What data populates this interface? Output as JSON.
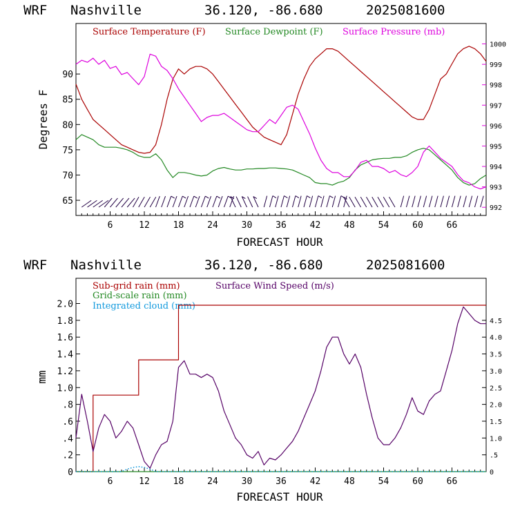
{
  "chart_data": [
    {
      "type": "line",
      "header": {
        "model": "WRF",
        "location": "Nashville",
        "coords": "36.120, -86.680",
        "run": "2025081600"
      },
      "xlabel": "FORECAST HOUR",
      "ylabel": "Degrees F",
      "xlim": [
        0,
        72
      ],
      "ylim": [
        62,
        100
      ],
      "y2lim": [
        991.6,
        1001.0
      ],
      "xticks": [
        "6",
        "12",
        "18",
        "24",
        "30",
        "36",
        "42",
        "48",
        "54",
        "60",
        "66"
      ],
      "yticks": [
        "65",
        "70",
        "75",
        "80",
        "85",
        "90"
      ],
      "y2ticks": [
        "992",
        "993",
        "994",
        "995",
        "996",
        "997",
        "998",
        "999",
        "1000"
      ],
      "series": [
        {
          "name": "Surface Temperature (F)",
          "color": "#aa0000",
          "axis": "left",
          "x": [
            0,
            1,
            2,
            3,
            4,
            5,
            6,
            7,
            8,
            9,
            10,
            11,
            12,
            13,
            14,
            15,
            16,
            17,
            18,
            19,
            20,
            21,
            22,
            23,
            24,
            25,
            26,
            27,
            28,
            29,
            30,
            31,
            32,
            33,
            34,
            35,
            36,
            37,
            38,
            39,
            40,
            41,
            42,
            43,
            44,
            45,
            46,
            47,
            48,
            49,
            50,
            51,
            52,
            53,
            54,
            55,
            56,
            57,
            58,
            59,
            60,
            61,
            62,
            63,
            64,
            65,
            66,
            67,
            68,
            69,
            70,
            71,
            72
          ],
          "y": [
            88,
            85,
            83,
            81,
            80,
            79,
            78,
            77,
            76,
            75.5,
            75,
            74.5,
            74.3,
            74.5,
            76,
            80,
            85,
            89,
            91,
            90,
            91,
            91.5,
            91.5,
            91,
            90,
            88.5,
            87,
            85.5,
            84,
            82.5,
            81,
            79.5,
            78.5,
            77.5,
            77,
            76.5,
            76,
            78,
            82,
            86,
            89,
            91.5,
            93,
            94,
            95,
            95,
            94.5,
            93.5,
            92.5,
            91.5,
            90.5,
            89.5,
            88.5,
            87.5,
            86.5,
            85.5,
            84.5,
            83.5,
            82.5,
            81.5,
            81,
            81,
            83,
            86,
            89,
            90,
            92,
            94,
            95,
            95.5,
            95,
            94,
            92.5
          ]
        },
        {
          "name": "Surface Dewpoint (F)",
          "color": "#228822",
          "axis": "left",
          "x": [
            0,
            1,
            2,
            3,
            4,
            5,
            6,
            7,
            8,
            9,
            10,
            11,
            12,
            13,
            14,
            15,
            16,
            17,
            18,
            19,
            20,
            21,
            22,
            23,
            24,
            25,
            26,
            27,
            28,
            29,
            30,
            31,
            32,
            33,
            34,
            35,
            36,
            37,
            38,
            39,
            40,
            41,
            42,
            43,
            44,
            45,
            46,
            47,
            48,
            49,
            50,
            51,
            52,
            53,
            54,
            55,
            56,
            57,
            58,
            59,
            60,
            61,
            62,
            63,
            64,
            65,
            66,
            67,
            68,
            69,
            70,
            71,
            72
          ],
          "y": [
            77,
            78,
            77.5,
            77,
            76,
            75.5,
            75.5,
            75.5,
            75.3,
            75,
            74.5,
            73.8,
            73.5,
            73.5,
            74.2,
            73,
            71,
            69.5,
            70.5,
            70.5,
            70.3,
            70,
            69.8,
            70,
            70.8,
            71.3,
            71.5,
            71.2,
            71,
            71,
            71.2,
            71.2,
            71.3,
            71.3,
            71.4,
            71.4,
            71.3,
            71.2,
            71,
            70.5,
            70,
            69.5,
            68.5,
            68.3,
            68.3,
            68,
            68.5,
            68.8,
            69.5,
            71,
            72,
            72.5,
            73,
            73.2,
            73.3,
            73.3,
            73.5,
            73.5,
            73.8,
            74.5,
            75,
            75.3,
            75,
            74,
            73,
            72,
            71,
            69.5,
            68.5,
            68,
            68.3,
            69.3,
            70
          ]
        },
        {
          "name": "Surface Pressure (mb)",
          "color": "#dd00dd",
          "axis": "right",
          "x": [
            0,
            1,
            2,
            3,
            4,
            5,
            6,
            7,
            8,
            9,
            10,
            11,
            12,
            13,
            14,
            15,
            16,
            17,
            18,
            19,
            20,
            21,
            22,
            23,
            24,
            25,
            26,
            27,
            28,
            29,
            30,
            31,
            32,
            33,
            34,
            35,
            36,
            37,
            38,
            39,
            40,
            41,
            42,
            43,
            44,
            45,
            46,
            47,
            48,
            49,
            50,
            51,
            52,
            53,
            54,
            55,
            56,
            57,
            58,
            59,
            60,
            61,
            62,
            63,
            64,
            65,
            66,
            67,
            68,
            69,
            70,
            71,
            72
          ],
          "y": [
            999.0,
            999.2,
            999.1,
            999.3,
            999.0,
            999.2,
            998.8,
            998.9,
            998.5,
            998.6,
            998.3,
            998.0,
            998.4,
            999.5,
            999.4,
            998.9,
            998.7,
            998.3,
            997.8,
            997.4,
            997.0,
            996.6,
            996.2,
            996.4,
            996.5,
            996.5,
            996.6,
            996.4,
            996.2,
            996.0,
            995.8,
            995.7,
            995.7,
            996.0,
            996.3,
            996.1,
            996.5,
            996.9,
            997.0,
            996.8,
            996.2,
            995.6,
            994.9,
            994.3,
            993.9,
            993.7,
            993.7,
            993.5,
            993.5,
            993.8,
            994.2,
            994.3,
            994.0,
            994.0,
            993.9,
            993.7,
            993.8,
            993.6,
            993.5,
            993.7,
            994.0,
            994.7,
            995.0,
            994.7,
            994.4,
            994.2,
            994.0,
            993.6,
            993.3,
            993.2,
            993.0,
            992.9,
            993.0
          ]
        }
      ]
    },
    {
      "type": "line",
      "header": {
        "model": "WRF",
        "location": "Nashville",
        "coords": "36.120, -86.680",
        "run": "2025081600"
      },
      "xlabel": "FORECAST HOUR",
      "ylabel": "mm",
      "xlim": [
        0,
        72
      ],
      "ylim": [
        0,
        2.3
      ],
      "y2lim": [
        0,
        5.75
      ],
      "xticks": [
        "6",
        "12",
        "18",
        "24",
        "30",
        "36",
        "42",
        "48",
        "54",
        "60",
        "66"
      ],
      "yticks": [
        "0",
        "0.2",
        "0.4",
        "0.6",
        "0.8",
        "1.0",
        "1.2",
        "1.4",
        "1.6",
        "1.8",
        "2.0"
      ],
      "ytick_labels": [
        "0",
        ".2",
        ".4",
        ".6",
        ".8",
        "1.0",
        "1.2",
        "1.4",
        "1.6",
        "1.8",
        "2.0"
      ],
      "y2ticks": [
        0,
        0.5,
        1.0,
        1.5,
        2.0,
        2.5,
        3.0,
        3.5,
        4.0,
        4.5
      ],
      "y2tick_labels": [
        "0",
        ".5",
        "1.0",
        "1.5",
        "2.0",
        "2.5",
        "3.0",
        "3.5",
        "4.0",
        "4.5"
      ],
      "series": [
        {
          "name": "Sub-grid rain (mm)",
          "color": "#aa0000",
          "axis": "left",
          "step": true,
          "x": [
            0,
            3,
            3,
            11,
            11,
            18,
            18,
            72
          ],
          "y": [
            0,
            0,
            0.91,
            0.91,
            1.33,
            1.33,
            1.98,
            1.98
          ]
        },
        {
          "name": "Grid-scale rain (mm)",
          "color": "#228822",
          "axis": "left",
          "x": [
            0,
            72
          ],
          "y": [
            0,
            0
          ]
        },
        {
          "name": "Integrated cloud (mm)",
          "color": "#1199dd",
          "axis": "left",
          "dotted": true,
          "x": [
            0,
            8,
            9,
            10,
            11,
            12,
            13,
            14,
            72
          ],
          "y": [
            0,
            0,
            0.03,
            0.05,
            0.06,
            0.05,
            0.03,
            0,
            0
          ]
        },
        {
          "name": "Surface Wind Speed (m/s)",
          "color": "#550066",
          "axis": "right",
          "x": [
            0,
            1,
            2,
            3,
            4,
            5,
            6,
            7,
            8,
            9,
            10,
            11,
            12,
            13,
            14,
            15,
            16,
            17,
            18,
            19,
            20,
            21,
            22,
            23,
            24,
            25,
            26,
            27,
            28,
            29,
            30,
            31,
            32,
            33,
            34,
            35,
            36,
            37,
            38,
            39,
            40,
            41,
            42,
            43,
            44,
            45,
            46,
            47,
            48,
            49,
            50,
            51,
            52,
            53,
            54,
            55,
            56,
            57,
            58,
            59,
            60,
            61,
            62,
            63,
            64,
            65,
            66,
            67,
            68,
            69,
            70,
            71,
            72
          ],
          "y": [
            1.0,
            2.3,
            1.5,
            0.6,
            1.3,
            1.7,
            1.5,
            1.0,
            1.2,
            1.5,
            1.3,
            0.8,
            0.3,
            0.1,
            0.5,
            0.8,
            0.9,
            1.5,
            3.1,
            3.3,
            2.9,
            2.9,
            2.8,
            2.9,
            2.8,
            2.4,
            1.8,
            1.4,
            1.0,
            0.8,
            0.5,
            0.4,
            0.6,
            0.2,
            0.4,
            0.35,
            0.5,
            0.7,
            0.9,
            1.2,
            1.6,
            2.0,
            2.4,
            3.0,
            3.7,
            4.0,
            4.0,
            3.5,
            3.2,
            3.5,
            3.1,
            2.3,
            1.6,
            1.0,
            0.8,
            0.8,
            1.0,
            1.3,
            1.7,
            2.2,
            1.8,
            1.7,
            2.1,
            2.3,
            2.4,
            3.0,
            3.6,
            4.4,
            4.9,
            4.7,
            4.5,
            4.4,
            4.4
          ]
        }
      ]
    }
  ]
}
